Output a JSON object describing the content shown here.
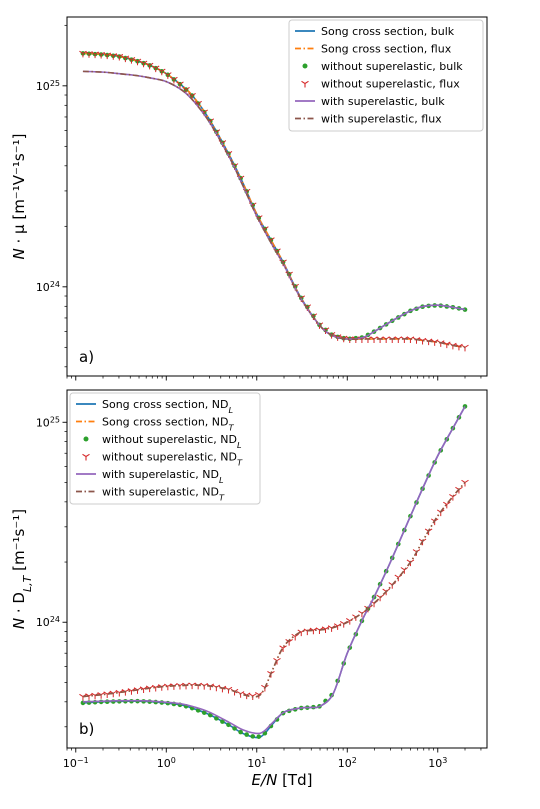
{
  "figure": {
    "xlabel_main": "E/N",
    "xlabel_unit": " [Td]"
  },
  "chart_data": [
    {
      "type": "line",
      "panel_label": "a)",
      "xscale": "log",
      "yscale": "log",
      "xlim": [
        0.08,
        3500
      ],
      "ylim": [
        3.6e+23,
        2.2e+25
      ],
      "ylabel": "N · μ [m⁻¹V⁻¹s⁻¹]",
      "legend_position": "upper right",
      "xticks": [
        {
          "v": 0.1,
          "b": "10",
          "e": "−1"
        },
        {
          "v": 1,
          "b": "10",
          "e": "0"
        },
        {
          "v": 10,
          "b": "10",
          "e": "1"
        },
        {
          "v": 100,
          "b": "10",
          "e": "2"
        },
        {
          "v": 1000,
          "b": "10",
          "e": "3"
        }
      ],
      "yticks": [
        {
          "v": 1e+24,
          "b": "10",
          "e": "24"
        },
        {
          "v": 1e+25,
          "b": "10",
          "e": "25"
        }
      ],
      "x": [
        0.12,
        0.2,
        0.3,
        0.5,
        0.7,
        1,
        1.5,
        2,
        3,
        5,
        7,
        10,
        15,
        20,
        30,
        50,
        70,
        100,
        150,
        200,
        300,
        500,
        700,
        1000,
        1500,
        2000
      ],
      "series": [
        {
          "name": "Song cross section, bulk",
          "style": "solid",
          "color": "#1f77b4",
          "values": [
            1.45e+25,
            1.43e+25,
            1.4e+25,
            1.32e+25,
            1.25e+25,
            1.15e+25,
            1e+25,
            8.8e+24,
            6.8e+24,
            4.5e+24,
            3.3e+24,
            2.3e+24,
            1.65e+24,
            1.3e+24,
            9e+23,
            6.4e+23,
            5.7e+23,
            5.5e+23,
            5.6e+23,
            6e+23,
            6.7e+23,
            7.6e+23,
            8e+23,
            8.1e+23,
            7.9e+23,
            7.7e+23
          ]
        },
        {
          "name": "Song cross section, flux",
          "style": "dashdot",
          "color": "#ff7f0e",
          "values": [
            1.45e+25,
            1.43e+25,
            1.4e+25,
            1.32e+25,
            1.25e+25,
            1.15e+25,
            1e+25,
            8.8e+24,
            6.8e+24,
            4.5e+24,
            3.3e+24,
            2.3e+24,
            1.65e+24,
            1.3e+24,
            9e+23,
            6.4e+23,
            5.7e+23,
            5.5e+23,
            5.5e+23,
            5.5e+23,
            5.5e+23,
            5.5e+23,
            5.4e+23,
            5.3e+23,
            5.1e+23,
            5e+23
          ]
        },
        {
          "name": "without superelastic, bulk",
          "style": "dots",
          "color": "#2ca02c",
          "values": [
            1.45e+25,
            1.43e+25,
            1.4e+25,
            1.32e+25,
            1.25e+25,
            1.15e+25,
            1e+25,
            8.8e+24,
            6.8e+24,
            4.5e+24,
            3.3e+24,
            2.3e+24,
            1.65e+24,
            1.3e+24,
            9e+23,
            6.4e+23,
            5.7e+23,
            5.5e+23,
            5.6e+23,
            6e+23,
            6.7e+23,
            7.6e+23,
            8e+23,
            8.1e+23,
            7.9e+23,
            7.7e+23
          ]
        },
        {
          "name": "without superelastic, flux",
          "style": "tri",
          "color": "#d62728",
          "values": [
            1.45e+25,
            1.43e+25,
            1.4e+25,
            1.32e+25,
            1.25e+25,
            1.15e+25,
            1e+25,
            8.8e+24,
            6.8e+24,
            4.5e+24,
            3.3e+24,
            2.3e+24,
            1.65e+24,
            1.3e+24,
            9e+23,
            6.4e+23,
            5.7e+23,
            5.5e+23,
            5.5e+23,
            5.5e+23,
            5.5e+23,
            5.5e+23,
            5.4e+23,
            5.3e+23,
            5.1e+23,
            5e+23
          ]
        },
        {
          "name": "with superelastic, bulk",
          "style": "solid",
          "color": "#9467bd",
          "values": [
            1.18e+25,
            1.17e+25,
            1.15e+25,
            1.12e+25,
            1.09e+25,
            1.05e+25,
            9.5e+24,
            8.4e+24,
            6.6e+24,
            4.4e+24,
            3.2e+24,
            2.25e+24,
            1.6e+24,
            1.28e+24,
            8.9e+23,
            6.4e+23,
            5.7e+23,
            5.5e+23,
            5.6e+23,
            6e+23,
            6.7e+23,
            7.6e+23,
            8e+23,
            8.1e+23,
            7.9e+23,
            7.7e+23
          ]
        },
        {
          "name": "with superelastic, flux",
          "style": "dashdot",
          "color": "#8c564b",
          "values": [
            1.18e+25,
            1.17e+25,
            1.15e+25,
            1.12e+25,
            1.09e+25,
            1.05e+25,
            9.5e+24,
            8.4e+24,
            6.6e+24,
            4.4e+24,
            3.2e+24,
            2.25e+24,
            1.6e+24,
            1.28e+24,
            8.9e+23,
            6.4e+23,
            5.7e+23,
            5.5e+23,
            5.5e+23,
            5.5e+23,
            5.5e+23,
            5.5e+23,
            5.4e+23,
            5.3e+23,
            5.1e+23,
            5e+23
          ]
        }
      ]
    },
    {
      "type": "line",
      "panel_label": "b)",
      "xscale": "log",
      "yscale": "log",
      "xlim": [
        0.08,
        3500
      ],
      "ylim": [
        2.35e+23,
        1.45e+25
      ],
      "ylabel": "N · D_{L,T} [m⁻¹s⁻¹]",
      "legend_position": "upper left",
      "xticks": [
        {
          "v": 0.1,
          "b": "10",
          "e": "−1"
        },
        {
          "v": 1,
          "b": "10",
          "e": "0"
        },
        {
          "v": 10,
          "b": "10",
          "e": "1"
        },
        {
          "v": 100,
          "b": "10",
          "e": "2"
        },
        {
          "v": 1000,
          "b": "10",
          "e": "3"
        }
      ],
      "yticks": [
        {
          "v": 1e+24,
          "b": "10",
          "e": "24"
        },
        {
          "v": 1e+25,
          "b": "10",
          "e": "25"
        }
      ],
      "x": [
        0.12,
        0.2,
        0.3,
        0.5,
        0.7,
        1,
        1.5,
        2,
        3,
        5,
        7,
        10,
        12,
        15,
        20,
        30,
        40,
        50,
        70,
        100,
        150,
        200,
        300,
        500,
        700,
        1000,
        1500,
        2000
      ],
      "series": [
        {
          "name": "Song cross section, ND_L",
          "style": "solid",
          "color": "#1f77b4",
          "values": [
            3.95e+23,
            4e+23,
            4.02e+23,
            4.03e+23,
            4e+23,
            3.95e+23,
            3.85e+23,
            3.7e+23,
            3.45e+23,
            3.05e+23,
            2.78e+23,
            2.65e+23,
            2.75e+23,
            3.1e+23,
            3.55e+23,
            3.72e+23,
            3.75e+23,
            3.8e+23,
            4.4e+23,
            7e+23,
            1.05e+24,
            1.35e+24,
            2e+24,
            3.4e+24,
            4.8e+24,
            6.8e+24,
            9.5e+24,
            1.2e+25
          ]
        },
        {
          "name": "Song cross section, ND_T",
          "style": "dashdot",
          "color": "#ff7f0e",
          "values": [
            4.25e+23,
            4.35e+23,
            4.45e+23,
            4.6e+23,
            4.7e+23,
            4.78e+23,
            4.83e+23,
            4.85e+23,
            4.8e+23,
            4.6e+23,
            4.35e+23,
            4.25e+23,
            4.6e+23,
            5.8e+23,
            7.6e+23,
            8.9e+23,
            9.1e+23,
            9.15e+23,
            9.4e+23,
            1e+24,
            1.12e+24,
            1.25e+24,
            1.5e+24,
            2e+24,
            2.6e+24,
            3.4e+24,
            4.3e+24,
            5e+24
          ]
        },
        {
          "name": "without superelastic, ND_L",
          "style": "dots",
          "color": "#2ca02c",
          "values": [
            3.95e+23,
            4e+23,
            4.02e+23,
            4.03e+23,
            4e+23,
            3.95e+23,
            3.85e+23,
            3.7e+23,
            3.45e+23,
            3.05e+23,
            2.78e+23,
            2.65e+23,
            2.75e+23,
            3.1e+23,
            3.55e+23,
            3.72e+23,
            3.75e+23,
            3.8e+23,
            4.4e+23,
            7e+23,
            1.05e+24,
            1.35e+24,
            2e+24,
            3.4e+24,
            4.8e+24,
            6.8e+24,
            9.5e+24,
            1.2e+25
          ]
        },
        {
          "name": "without superelastic, ND_T",
          "style": "tri",
          "color": "#d62728",
          "values": [
            4.25e+23,
            4.35e+23,
            4.45e+23,
            4.6e+23,
            4.7e+23,
            4.78e+23,
            4.83e+23,
            4.85e+23,
            4.8e+23,
            4.6e+23,
            4.35e+23,
            4.25e+23,
            4.6e+23,
            5.8e+23,
            7.6e+23,
            8.9e+23,
            9.1e+23,
            9.15e+23,
            9.4e+23,
            1e+24,
            1.12e+24,
            1.25e+24,
            1.5e+24,
            2e+24,
            2.6e+24,
            3.4e+24,
            4.3e+24,
            5e+24
          ]
        },
        {
          "name": "with superelastic, ND_L",
          "style": "solid",
          "color": "#9467bd",
          "values": [
            4e+23,
            4.03e+23,
            4.05e+23,
            4.05e+23,
            4.03e+23,
            3.98e+23,
            3.9e+23,
            3.78e+23,
            3.55e+23,
            3.15e+23,
            2.9e+23,
            2.78e+23,
            2.85e+23,
            3.15e+23,
            3.55e+23,
            3.72e+23,
            3.75e+23,
            3.8e+23,
            4.4e+23,
            7e+23,
            1.05e+24,
            1.35e+24,
            2e+24,
            3.4e+24,
            4.8e+24,
            6.8e+24,
            9.5e+24,
            1.2e+25
          ]
        },
        {
          "name": "with superelastic, ND_T",
          "style": "dashdot",
          "color": "#8c564b",
          "values": [
            4.25e+23,
            4.35e+23,
            4.45e+23,
            4.6e+23,
            4.7e+23,
            4.78e+23,
            4.83e+23,
            4.85e+23,
            4.8e+23,
            4.6e+23,
            4.35e+23,
            4.25e+23,
            4.6e+23,
            5.8e+23,
            7.6e+23,
            8.9e+23,
            9.1e+23,
            9.15e+23,
            9.4e+23,
            1e+24,
            1.12e+24,
            1.25e+24,
            1.5e+24,
            2e+24,
            2.6e+24,
            3.4e+24,
            4.3e+24,
            5e+24
          ]
        }
      ]
    }
  ]
}
